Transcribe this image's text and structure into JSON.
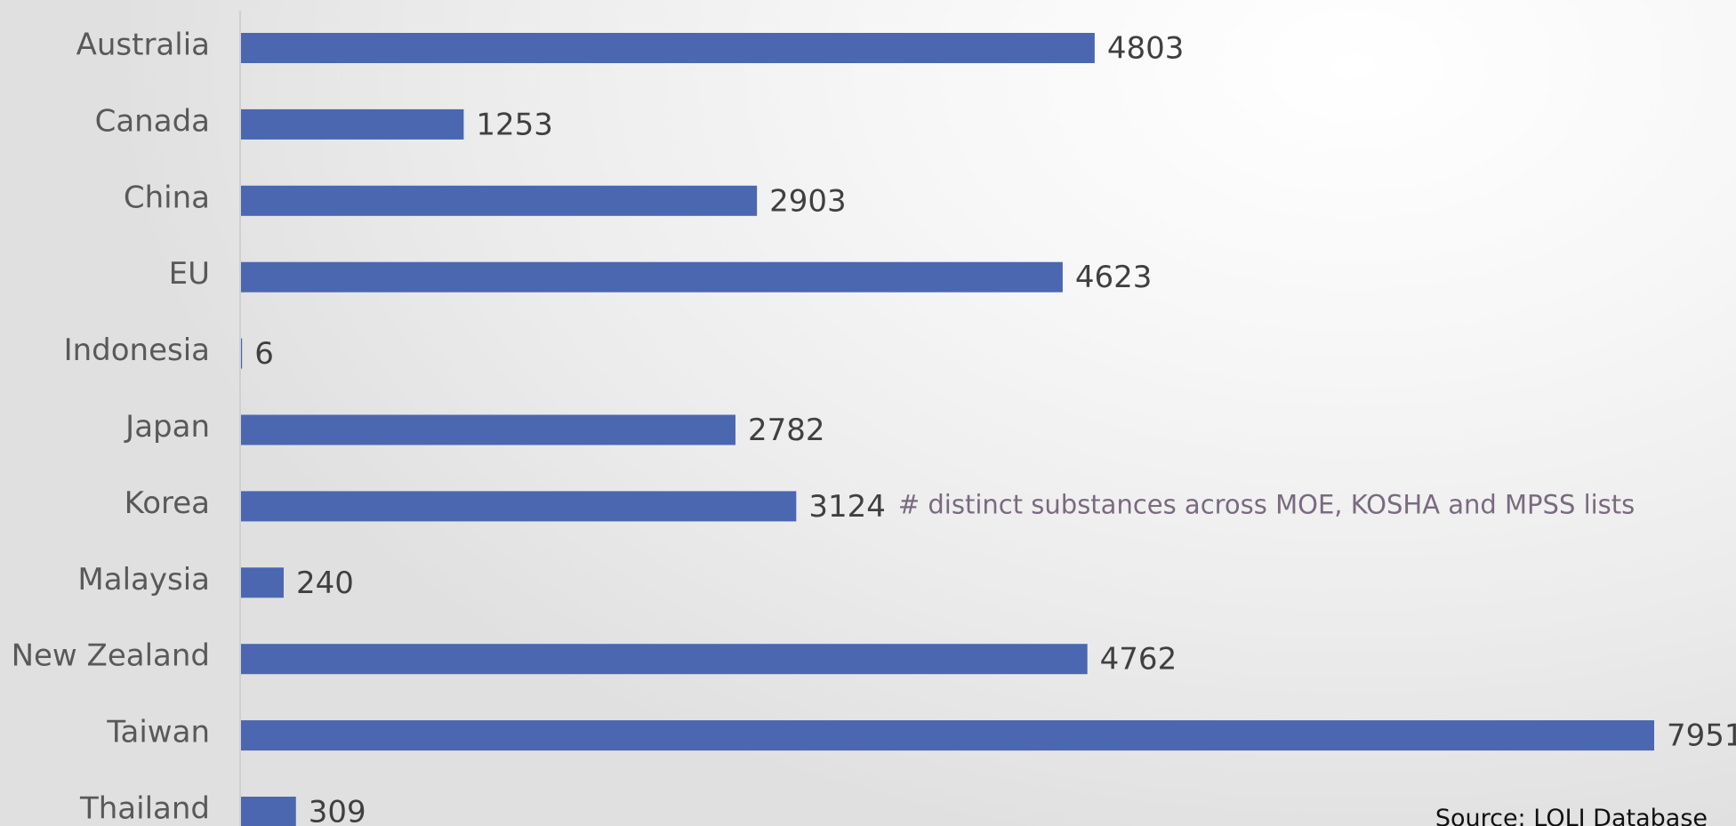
{
  "chart_data": {
    "type": "bar",
    "orientation": "horizontal",
    "categories": [
      "Australia",
      "Canada",
      "China",
      "EU",
      "Indonesia",
      "Japan",
      "Korea",
      "Malaysia",
      "New Zealand",
      "Taiwan",
      "Thailand"
    ],
    "values": [
      4803,
      1253,
      2903,
      4623,
      6,
      2782,
      3124,
      240,
      4762,
      7951,
      309
    ],
    "bar_color": "#4a67b0",
    "xlim": [
      0,
      7951
    ],
    "grid": false,
    "annotations": [
      {
        "category": "Korea",
        "text": "# distinct substances across MOE, KOSHA and MPSS lists"
      }
    ]
  },
  "source": "Source: LOLI Database"
}
